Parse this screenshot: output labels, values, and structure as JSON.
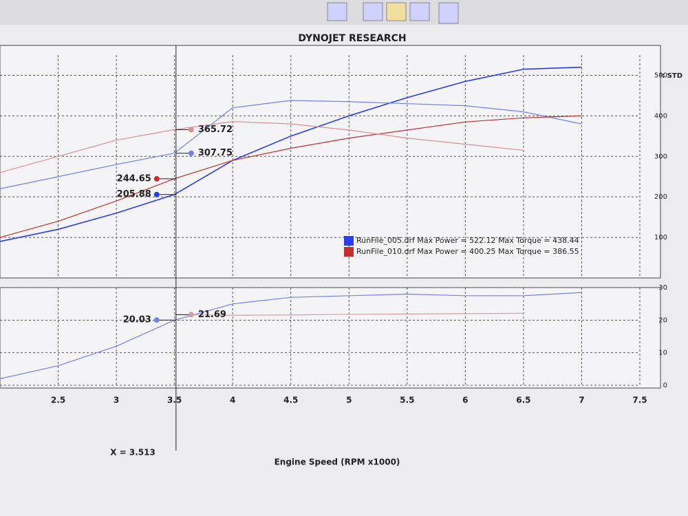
{
  "header": {
    "title": "DYNOJET RESEARCH",
    "note": "CF: STD"
  },
  "x_label": "Engine Speed (RPM x1000)",
  "cursor": {
    "value": 3.513,
    "label": "X = 3.513"
  },
  "legend": [
    {
      "label": "RunFile_005.drf Max Power = 522.12 Max Torque = 438.44",
      "color": "#2a3cf0"
    },
    {
      "label": "RunFile_010.drf Max Power = 400.25 Max Torque = 386.55",
      "color": "#c03030"
    }
  ],
  "chart_data": [
    {
      "type": "line",
      "grid": true,
      "x": [
        2.0,
        2.5,
        3.0,
        3.5,
        4.0,
        4.5,
        5.0,
        5.5,
        6.0,
        6.5,
        7.0
      ],
      "xlim": [
        2.0,
        7.5
      ],
      "xticks": [
        2.5,
        3.0,
        3.5,
        4.0,
        4.5,
        5.0,
        5.5,
        6.0,
        6.5,
        7.0,
        7.5
      ],
      "ylim": [
        0,
        550
      ],
      "yticks": [
        100,
        200,
        300,
        400,
        500
      ],
      "series": [
        {
          "color": "#2a3cf0",
          "values": [
            90,
            120,
            160,
            206,
            290,
            350,
            400,
            445,
            485,
            515,
            520
          ]
        },
        {
          "color": "#7080f0",
          "values": [
            220,
            250,
            280,
            308,
            420,
            438,
            435,
            430,
            425,
            410,
            380
          ]
        },
        {
          "color": "#c03030",
          "values": [
            100,
            140,
            190,
            245,
            290,
            320,
            345,
            365,
            385,
            395,
            400
          ]
        },
        {
          "color": "#d89090",
          "values": [
            260,
            300,
            340,
            366,
            386,
            380,
            365,
            345,
            330,
            315,
            null
          ]
        }
      ],
      "readouts": [
        {
          "value": 365.72,
          "color": "#d89090"
        },
        {
          "value": 307.75,
          "color": "#7080f0"
        },
        {
          "value": 244.65,
          "color": "#c03030"
        },
        {
          "value": 205.88,
          "color": "#2a3cf0"
        }
      ]
    },
    {
      "type": "line",
      "grid": true,
      "x": [
        2.0,
        2.5,
        3.0,
        3.5,
        4.0,
        4.5,
        5.0,
        5.5,
        6.0,
        6.5,
        7.0
      ],
      "xlim": [
        2.0,
        7.5
      ],
      "xticks": [
        2.5,
        3.0,
        3.5,
        4.0,
        4.5,
        5.0,
        5.5,
        6.0,
        6.5,
        7.0,
        7.5
      ],
      "ylim": [
        0,
        30
      ],
      "yticks": [
        0,
        10,
        20,
        30
      ],
      "series": [
        {
          "color": "#7080f0",
          "values": [
            2,
            6,
            12,
            20,
            25,
            27,
            27.5,
            28,
            27.5,
            27.5,
            28.5
          ]
        },
        {
          "color": "#d0a0a0",
          "values": [
            null,
            null,
            null,
            21.7,
            21.5,
            21.6,
            21.8,
            21.9,
            22,
            22.1,
            null
          ]
        }
      ],
      "readouts": [
        {
          "value": 21.69,
          "color": "#d0a0a0"
        },
        {
          "value": 20.03,
          "color": "#7080f0"
        }
      ]
    }
  ]
}
